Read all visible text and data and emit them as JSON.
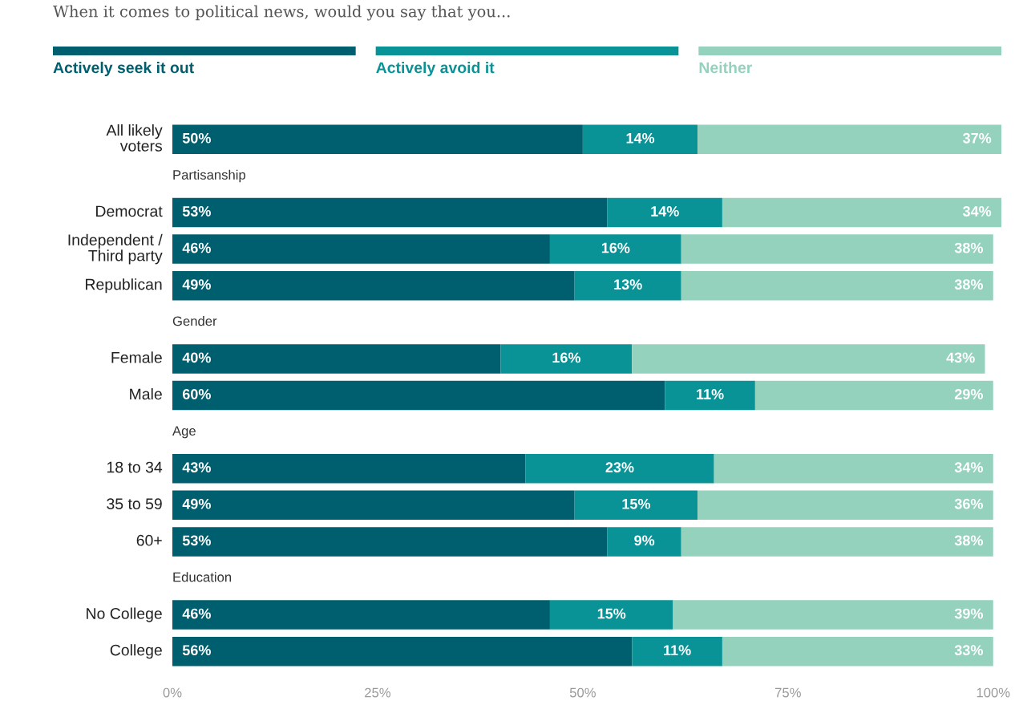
{
  "chart_data": {
    "type": "bar",
    "orientation": "horizontal",
    "stacked": true,
    "title": "When it comes to political news, would you say that you...",
    "categories": [
      "All likely\nvoters",
      "Partisanship",
      "Democrat",
      "Independent /\nThird party",
      "Republican",
      "Gender",
      "Female",
      "Male",
      "Age",
      "18 to 34",
      "35 to 59",
      "60+",
      "Education",
      "No College",
      "College"
    ],
    "series": [
      {
        "name": "Actively seek it out",
        "color": "#005f6e",
        "values": [
          50,
          null,
          53,
          46,
          49,
          null,
          40,
          60,
          null,
          43,
          49,
          53,
          null,
          46,
          56
        ],
        "value_labels": [
          "50%",
          null,
          "53%",
          "46%",
          "49%",
          null,
          "40%",
          "60%",
          null,
          "43%",
          "49%",
          "53%",
          null,
          "46%",
          "56%"
        ]
      },
      {
        "name": "Actively avoid it",
        "color": "#0a9396",
        "values": [
          14,
          null,
          14,
          16,
          13,
          null,
          16,
          11,
          null,
          23,
          15,
          9,
          null,
          15,
          11
        ],
        "value_labels": [
          "14%",
          null,
          "14%",
          "16%",
          "13%",
          null,
          "16%",
          "11%",
          null,
          "23%",
          "15%",
          "9%",
          null,
          "15%",
          "11%"
        ]
      },
      {
        "name": "Neither",
        "color": "#94d2bd",
        "values": [
          37,
          null,
          34,
          38,
          38,
          null,
          43,
          29,
          null,
          34,
          36,
          38,
          null,
          39,
          33
        ],
        "value_labels": [
          "37%",
          null,
          "34%",
          "38%",
          "38%",
          null,
          "43%",
          "29%",
          null,
          "34%",
          "36%",
          "38%",
          null,
          "39%",
          "33%"
        ]
      }
    ],
    "xlim": [
      0,
      101
    ],
    "xticks": [
      {
        "value": 0,
        "label": "0%"
      },
      {
        "value": 25,
        "label": "25%"
      },
      {
        "value": 50,
        "label": "50%"
      },
      {
        "value": 75,
        "label": "75%"
      },
      {
        "value": 100,
        "label": "100%"
      }
    ],
    "legend": "top",
    "grid": false
  }
}
